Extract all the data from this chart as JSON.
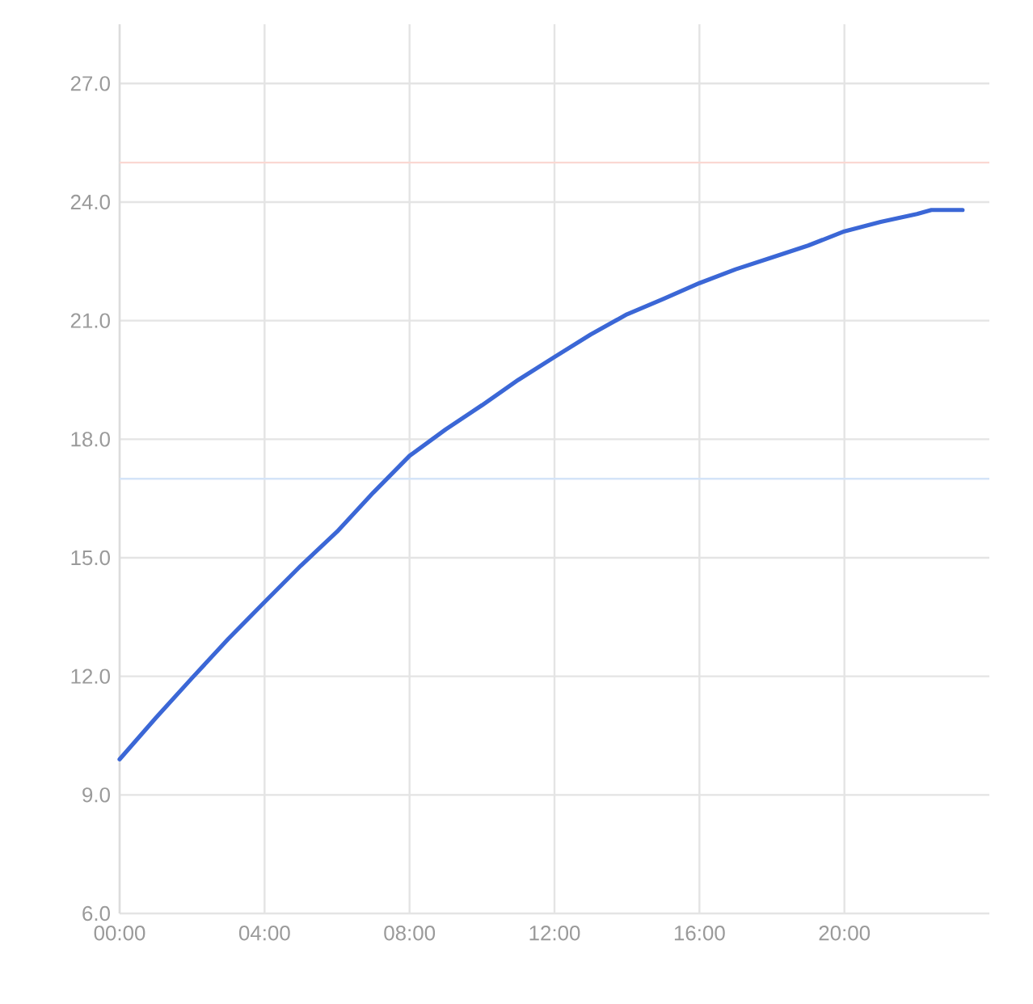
{
  "chart_data": {
    "type": "line",
    "x": [
      0,
      1,
      2,
      3,
      4,
      5,
      6,
      7,
      8,
      9,
      10,
      11,
      12,
      13,
      14,
      15,
      16,
      17,
      18,
      19,
      20,
      21,
      22,
      22.4,
      23.26
    ],
    "series": [
      {
        "color": "#3b67d6",
        "values": [
          9.9,
          10.95,
          11.96,
          12.95,
          13.88,
          14.8,
          15.66,
          16.65,
          17.58,
          18.25,
          18.86,
          19.5,
          20.08,
          20.65,
          21.16,
          21.55,
          21.95,
          22.3,
          22.6,
          22.9,
          23.26,
          23.5,
          23.7,
          23.8,
          23.8
        ]
      }
    ],
    "xlim": [
      0,
      24
    ],
    "xticks": [
      {
        "value": 0,
        "label": "00:00"
      },
      {
        "value": 4,
        "label": "04:00"
      },
      {
        "value": 8,
        "label": "08:00"
      },
      {
        "value": 12,
        "label": "12:00"
      },
      {
        "value": 16,
        "label": "16:00"
      },
      {
        "value": 20,
        "label": "20:00"
      }
    ],
    "ylim": [
      6,
      28.5
    ],
    "yticks": [
      {
        "value": 6,
        "label": "6.0"
      },
      {
        "value": 9,
        "label": "9.0"
      },
      {
        "value": 12,
        "label": "12.0"
      },
      {
        "value": 15,
        "label": "15.0"
      },
      {
        "value": 18,
        "label": "18.0"
      },
      {
        "value": 21,
        "label": "21.0"
      },
      {
        "value": 24,
        "label": "24.0"
      },
      {
        "value": 27,
        "label": "27.0"
      }
    ],
    "ref_lines": [
      {
        "axis": "y",
        "value": 25,
        "color": "#fad8d2"
      },
      {
        "axis": "y",
        "value": 17,
        "color": "#d4e4f8"
      }
    ],
    "grid": true,
    "marker": "none",
    "line_style": "solid"
  }
}
